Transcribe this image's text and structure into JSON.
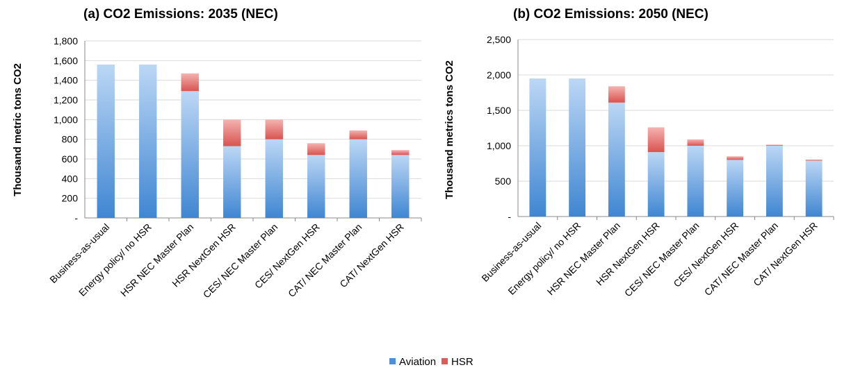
{
  "legend": [
    {
      "name": "Aviation",
      "color": "#4a90d9"
    },
    {
      "name": "HSR",
      "color": "#e05a5a"
    }
  ],
  "colors": {
    "aviation_top": "#bcd7f5",
    "aviation_bottom": "#3f86d2",
    "hsr_top": "#f4b3b0",
    "hsr_bottom": "#d9534f",
    "axis": "#888888",
    "grid": "#d9d9d9"
  },
  "chart_data": [
    {
      "type": "bar",
      "stacked": true,
      "title": "(a) CO2 Emissions: 2035 (NEC)",
      "xlabel": "",
      "ylabel": "Thousand metric tons CO2",
      "ylim": [
        0,
        1800
      ],
      "yticks": [
        0,
        200,
        400,
        600,
        800,
        1000,
        1200,
        1400,
        1600,
        1800
      ],
      "ytick_labels": [
        "-",
        "200",
        "400",
        "600",
        "800",
        "1,000",
        "1,200",
        "1,400",
        "1,600",
        "1,800"
      ],
      "grid": true,
      "legend_position": "bottom-center",
      "categories": [
        "Business-as-usual",
        "Energy policy/ no HSR",
        "HSR NEC Master Plan",
        "HSR NextGen HSR",
        "CES/ NEC Master Plan",
        "CES/ NextGen HSR",
        "CAT/ NEC Master Plan",
        "CAT/ NextGen HSR"
      ],
      "series": [
        {
          "name": "Aviation",
          "values": [
            1560,
            1560,
            1290,
            730,
            800,
            640,
            800,
            640
          ]
        },
        {
          "name": "HSR",
          "values": [
            0,
            0,
            180,
            270,
            200,
            120,
            90,
            50
          ]
        }
      ]
    },
    {
      "type": "bar",
      "stacked": true,
      "title": "(b) CO2 Emissions: 2050 (NEC)",
      "xlabel": "",
      "ylabel": "Thousand metrics tons CO2",
      "ylim": [
        0,
        2500
      ],
      "yticks": [
        0,
        500,
        1000,
        1500,
        2000,
        2500
      ],
      "ytick_labels": [
        "-",
        "500",
        "1,000",
        "1,500",
        "2,000",
        "2,500"
      ],
      "grid": true,
      "legend_position": "bottom-center",
      "categories": [
        "Business-as-usual",
        "Energy policy/ no HSR",
        "HSR NEC Master Plan",
        "HSR NextGen HSR",
        "CES/ NEC Master Plan",
        "CES/ NextGen HSR",
        "CAT/ NEC Master Plan",
        "CAT/ NextGen HSR"
      ],
      "series": [
        {
          "name": "Aviation",
          "values": [
            1950,
            1950,
            1610,
            910,
            1000,
            800,
            1000,
            790
          ]
        },
        {
          "name": "HSR",
          "values": [
            0,
            0,
            230,
            350,
            90,
            50,
            15,
            15
          ]
        }
      ]
    }
  ]
}
